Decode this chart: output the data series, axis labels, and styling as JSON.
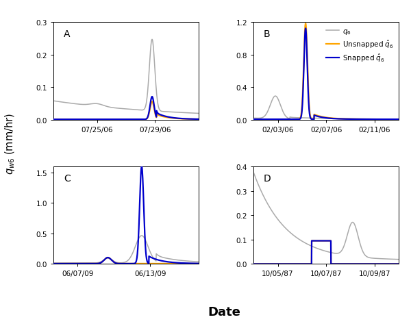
{
  "title": "Date",
  "ylabel": "$q_{w6}$ (mm/hr)",
  "panels": [
    "A",
    "B",
    "C",
    "D"
  ],
  "colors": {
    "q6": "#aaaaaa",
    "unsnapped": "#FFA500",
    "snapped": "#0000CC"
  },
  "legend_labels": [
    "$q_6$",
    "Unsnapped $\\hat{q}_6$",
    "Snapped $\\hat{q}_6$"
  ],
  "panel_A": {
    "xlim": [
      0,
      10
    ],
    "ylim": [
      0,
      0.3
    ],
    "yticks": [
      0.0,
      0.1,
      0.2,
      0.3
    ],
    "xtick_labels": [
      "07/25/06",
      "07/29/06"
    ],
    "xtick_positions": [
      3,
      7
    ]
  },
  "panel_B": {
    "xlim": [
      0,
      12
    ],
    "ylim": [
      0,
      1.2
    ],
    "yticks": [
      0.0,
      0.4,
      0.8,
      1.2
    ],
    "xtick_labels": [
      "02/03/06",
      "02/07/06",
      "02/11/06"
    ],
    "xtick_positions": [
      2,
      6,
      10
    ]
  },
  "panel_C": {
    "xlim": [
      0,
      12
    ],
    "ylim": [
      0,
      1.6
    ],
    "yticks": [
      0.0,
      0.5,
      1.0,
      1.5
    ],
    "xtick_labels": [
      "06/07/09",
      "06/13/09"
    ],
    "xtick_positions": [
      2,
      8
    ]
  },
  "panel_D": {
    "xlim": [
      0,
      12
    ],
    "ylim": [
      0,
      0.4
    ],
    "yticks": [
      0.0,
      0.1,
      0.2,
      0.3,
      0.4
    ],
    "xtick_labels": [
      "10/05/87",
      "10/07/87",
      "10/09/87"
    ],
    "xtick_positions": [
      2,
      6,
      10
    ]
  }
}
